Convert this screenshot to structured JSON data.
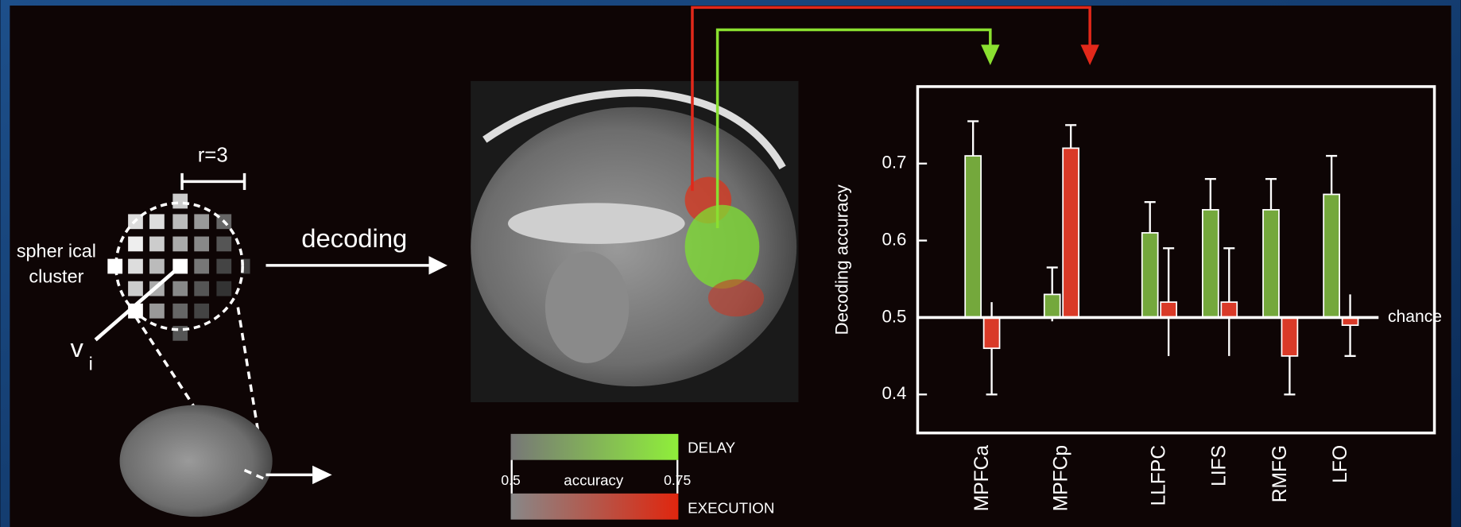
{
  "diagram": {
    "radius_label": "r=3",
    "cluster_label_1": "spher ical",
    "cluster_label_2": "cluster",
    "voxel_label": "v",
    "voxel_subscript": "i",
    "arrow_label": "decoding",
    "colorbar": {
      "min_label": "0.5",
      "title": "accuracy",
      "max_label": "0.75"
    }
  },
  "chart_data": {
    "type": "bar",
    "y_label": "Decoding accuracy",
    "baseline_label": "chance",
    "baseline": 0.5,
    "categories": [
      "MPFCa",
      "MPFCp",
      "LLFPC",
      "LIFS",
      "RMFG",
      "LFO"
    ],
    "series": [
      {
        "name": "DELAY",
        "color": "#74a83c",
        "values": [
          0.71,
          0.53,
          0.61,
          0.64,
          0.64,
          0.66
        ],
        "errors": [
          0.045,
          0.035,
          0.04,
          0.04,
          0.04,
          0.05
        ]
      },
      {
        "name": "EXECUTION",
        "color": "#d93a28",
        "values": [
          0.46,
          0.72,
          0.52,
          0.52,
          0.45,
          0.49
        ],
        "errors": [
          0.06,
          0.03,
          0.07,
          0.07,
          0.05,
          0.04
        ]
      }
    ],
    "ylim": [
      0.35,
      0.8
    ],
    "yticks": [
      0.4,
      0.5,
      0.6,
      0.7
    ],
    "grid": false
  }
}
